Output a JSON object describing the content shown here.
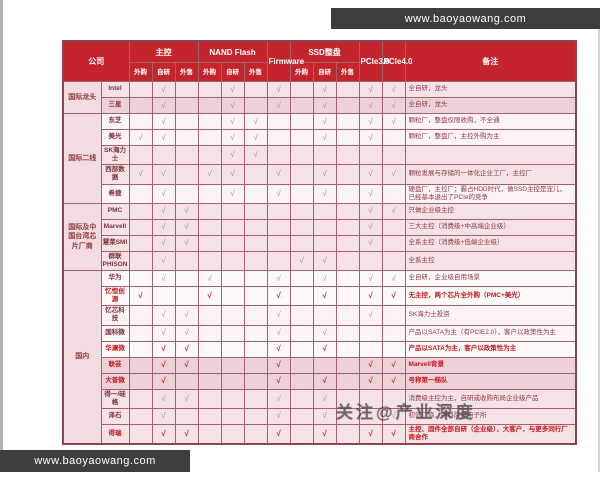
{
  "watermarks": {
    "top_bar": "www.baoyaowang.com",
    "bottom_bar": "www.baoyaowang.com",
    "overlay": "关注@产业深度"
  },
  "colors": {
    "header_red": "#c4242b",
    "red_text": "#c3161c",
    "bar_dark": "#3f3e3e",
    "border": "#a2626a"
  },
  "table": {
    "header": {
      "company": "公司",
      "groups": [
        {
          "key": "main-controller",
          "label": "主控",
          "span": 3
        },
        {
          "key": "nand-flash",
          "label": "NAND Flash",
          "span": 3
        },
        {
          "key": "firmware",
          "label": "Firmware",
          "span": 1,
          "rowspan": 2
        },
        {
          "key": "ssd-module",
          "label": "SSD整盘",
          "span": 3
        },
        {
          "key": "pcie3",
          "label": "PCIe3.0",
          "span": 1,
          "rowspan": 2
        },
        {
          "key": "pcie4",
          "label": "PCIe4.0",
          "span": 1,
          "rowspan": 2
        },
        {
          "key": "remark",
          "label": "备注",
          "span": 1,
          "rowspan": 2
        }
      ],
      "sub_labels": [
        "外购",
        "自研",
        "外售",
        "外购",
        "自研",
        "外售",
        "外购",
        "自研",
        "外售"
      ]
    },
    "rows": [
      {
        "group": {
          "label": "国际龙头",
          "rows": 2
        },
        "name": "Intel",
        "shade": 1,
        "red": false,
        "checks": [
          0,
          1,
          0,
          0,
          1,
          0,
          1,
          0,
          1,
          0,
          1,
          1
        ],
        "remark": "全自研，龙头"
      },
      {
        "name": "三星",
        "shade": 2,
        "red": false,
        "checks": [
          0,
          1,
          0,
          0,
          1,
          0,
          1,
          0,
          1,
          0,
          1,
          1
        ],
        "remark": "全自研，龙头"
      },
      {
        "group": {
          "label": "国际二线",
          "rows": 5
        },
        "name": "东芝",
        "shade": 0,
        "red": false,
        "checks": [
          0,
          1,
          0,
          0,
          1,
          1,
          0,
          0,
          1,
          0,
          1,
          1
        ],
        "remark": "颗粒厂，整盘仅限收购，不全通"
      },
      {
        "name": "美光",
        "shade": 0,
        "red": false,
        "checks": [
          1,
          1,
          0,
          0,
          1,
          1,
          0,
          0,
          1,
          0,
          1,
          0
        ],
        "remark": "颗粒厂，整盘厂，主控外购为主"
      },
      {
        "name": "SK海力士",
        "shade": 1,
        "red": false,
        "checks": [
          0,
          0,
          0,
          0,
          1,
          1,
          0,
          0,
          0,
          0,
          0,
          0
        ],
        "remark": ""
      },
      {
        "name": "西部数据",
        "shade": 1,
        "red": false,
        "checks": [
          1,
          1,
          0,
          1,
          1,
          0,
          1,
          0,
          1,
          0,
          1,
          1
        ],
        "remark": "颗粒发展与存储的一体化企业工厂，主控厂"
      },
      {
        "name": "希捷",
        "shade": 0,
        "red": false,
        "checks": [
          0,
          1,
          0,
          0,
          1,
          0,
          1,
          0,
          1,
          0,
          1,
          0
        ],
        "remark": "硬盘厂，主控厂；霸占HDD时代，做SSD主控是宠儿，已经基本退出了PCIe的竞争"
      },
      {
        "group": {
          "label": "国际及中国台湾芯片厂商",
          "rows": 4
        },
        "name": "PMC",
        "shade": 1,
        "red": false,
        "checks": [
          0,
          1,
          1,
          0,
          0,
          0,
          0,
          0,
          0,
          0,
          1,
          1
        ],
        "remark": "只做企业级主控"
      },
      {
        "name": "Marvell",
        "shade": 1,
        "red": false,
        "checks": [
          0,
          1,
          1,
          0,
          0,
          0,
          0,
          0,
          0,
          0,
          1,
          0
        ],
        "remark": "三大主控（消费级+中高端企业级）"
      },
      {
        "name": "慧荣SMI",
        "shade": 1,
        "red": false,
        "checks": [
          0,
          1,
          1,
          0,
          0,
          0,
          0,
          0,
          0,
          0,
          1,
          0
        ],
        "remark": "全系主控（消费级+低端企业级）"
      },
      {
        "name": "群联PHISON",
        "shade": 1,
        "red": false,
        "checks": [
          0,
          1,
          0,
          0,
          0,
          0,
          0,
          1,
          1,
          0,
          0,
          0
        ],
        "remark": "全系主控"
      },
      {
        "group": {
          "label": "国内",
          "rows": 10
        },
        "name": "华为",
        "shade": 3,
        "red": false,
        "checks": [
          0,
          1,
          0,
          1,
          0,
          0,
          1,
          0,
          1,
          0,
          1,
          1
        ],
        "remark": "全自研，企业级自用场景"
      },
      {
        "name": "忆恒创源",
        "shade": 3,
        "red": true,
        "checks": [
          1,
          0,
          0,
          1,
          0,
          0,
          1,
          0,
          1,
          0,
          1,
          1
        ],
        "remark": "无主控，两个芯片全外购（PMC+美光）"
      },
      {
        "name": "忆芯科技",
        "shade": 0,
        "red": false,
        "checks": [
          0,
          1,
          1,
          0,
          0,
          0,
          1,
          0,
          0,
          0,
          1,
          0
        ],
        "remark": "SK海力士投资"
      },
      {
        "name": "国科微",
        "shade": 0,
        "red": false,
        "checks": [
          0,
          1,
          1,
          0,
          0,
          0,
          1,
          0,
          1,
          0,
          0,
          0
        ],
        "remark": "产品以SATA为主（有PCIE2.0），客户以政策性为主"
      },
      {
        "name": "华澜微",
        "shade": 3,
        "red": true,
        "checks": [
          0,
          1,
          1,
          0,
          0,
          0,
          1,
          0,
          1,
          0,
          0,
          0
        ],
        "remark": "产品以SATA为主，客户以政策性为主"
      },
      {
        "name": "联芸",
        "shade": 2,
        "red": true,
        "checks": [
          0,
          1,
          1,
          0,
          0,
          0,
          1,
          0,
          0,
          0,
          1,
          1
        ],
        "remark": "Marvell背景"
      },
      {
        "name": "大普微",
        "shade": 2,
        "red": true,
        "checks": [
          0,
          1,
          0,
          0,
          0,
          0,
          1,
          0,
          1,
          0,
          1,
          1
        ],
        "remark": "号称第一梯队"
      },
      {
        "name": "得一/硅格",
        "shade": 1,
        "red": false,
        "checks": [
          0,
          1,
          1,
          0,
          0,
          0,
          1,
          0,
          1,
          0,
          0,
          0
        ],
        "remark": "消费级主控为主，自研或收购布局企业级产品"
      },
      {
        "name": "泽石",
        "shade": 1,
        "red": false,
        "checks": [
          0,
          1,
          0,
          0,
          0,
          0,
          1,
          0,
          1,
          0,
          0,
          1
        ],
        "remark": "初创厂商，中科院微电子所"
      },
      {
        "name": "得瑞",
        "shade": 1,
        "red": true,
        "checks": [
          0,
          1,
          1,
          0,
          0,
          0,
          1,
          0,
          1,
          0,
          1,
          1
        ],
        "remark": "主控、固件全部自研（企业级），大客户，与更多同行厂商合作"
      }
    ]
  }
}
